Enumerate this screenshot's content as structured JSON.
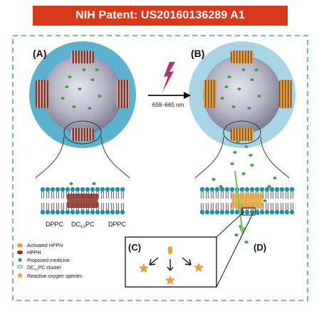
{
  "banner": {
    "title": "NIH Patent: US20160136289 A1"
  },
  "panels": {
    "a": "(A)",
    "b": "(B)",
    "c": "(C)",
    "d": "(D)"
  },
  "arrow_label": "658–665 nm",
  "membrane_labels": {
    "left": "DPPC",
    "middle_pre": "DC",
    "middle_sub": "8,9",
    "middle_post": "PC",
    "right": "DPPC"
  },
  "legend": [
    {
      "icon": "activated-hpph-icon",
      "color": "#e9a23a",
      "text": "Activated HPPH"
    },
    {
      "icon": "hpph-icon",
      "color": "#8c2f25",
      "text": "HPPH"
    },
    {
      "icon": "medicine-icon",
      "color": "#3aa23a",
      "text": "Proposed medicine"
    },
    {
      "icon": "cluster-icon",
      "color": "#cfcfcf",
      "pre": "DC",
      "sub": "8,9",
      "post": "PC cluster"
    },
    {
      "icon": "ros-star-icon",
      "color": "#f0a030",
      "text": "Reactive oxygen species"
    }
  ],
  "colors": {
    "banner": "#d8391a",
    "dashed_border": "#4fa89a",
    "outer_ring_a": "#5bb2cf",
    "outer_ring_b": "#a8d5e6",
    "lightning": "#b0307a"
  }
}
